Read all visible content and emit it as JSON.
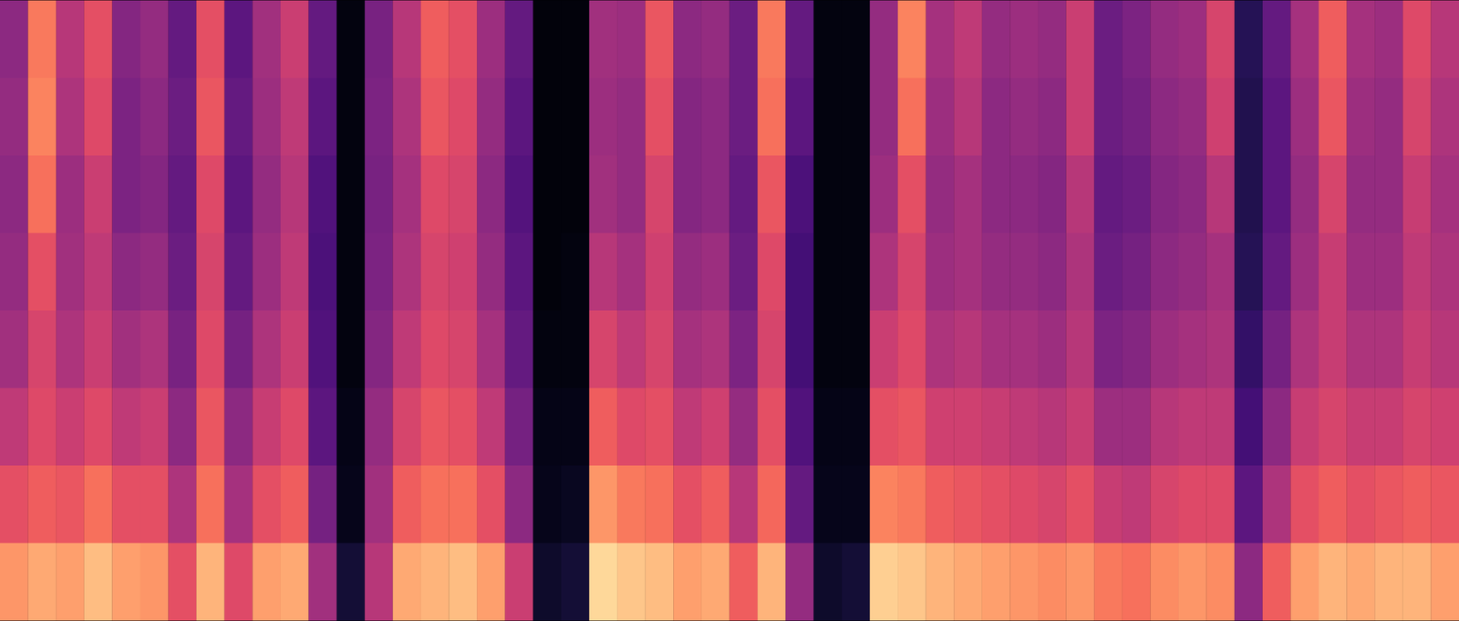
{
  "chart_data": {
    "type": "heatmap",
    "color": "magma",
    "tick_labels": false,
    "zlim": [
      0,
      1
    ],
    "cells": [
      [
        0.4,
        0.42,
        0.4,
        0.42,
        0.45,
        0.52,
        0.62,
        0.78
      ],
      [
        0.72,
        0.74,
        0.7,
        0.62,
        0.58,
        0.6,
        0.66,
        0.82
      ],
      [
        0.5,
        0.48,
        0.44,
        0.45,
        0.48,
        0.55,
        0.64,
        0.8
      ],
      [
        0.62,
        0.6,
        0.55,
        0.52,
        0.55,
        0.6,
        0.7,
        0.86
      ],
      [
        0.38,
        0.36,
        0.36,
        0.4,
        0.45,
        0.52,
        0.62,
        0.8
      ],
      [
        0.42,
        0.4,
        0.38,
        0.42,
        0.48,
        0.55,
        0.62,
        0.78
      ],
      [
        0.3,
        0.32,
        0.3,
        0.32,
        0.35,
        0.4,
        0.48,
        0.62
      ],
      [
        0.62,
        0.64,
        0.6,
        0.58,
        0.6,
        0.64,
        0.7,
        0.84
      ],
      [
        0.28,
        0.3,
        0.28,
        0.3,
        0.34,
        0.4,
        0.46,
        0.6
      ],
      [
        0.45,
        0.44,
        0.42,
        0.44,
        0.48,
        0.54,
        0.62,
        0.8
      ],
      [
        0.55,
        0.52,
        0.5,
        0.52,
        0.55,
        0.6,
        0.66,
        0.82
      ],
      [
        0.3,
        0.28,
        0.25,
        0.24,
        0.25,
        0.28,
        0.34,
        0.45
      ],
      [
        0.03,
        0.03,
        0.03,
        0.03,
        0.03,
        0.04,
        0.05,
        0.1
      ],
      [
        0.35,
        0.36,
        0.35,
        0.36,
        0.38,
        0.42,
        0.45,
        0.5
      ],
      [
        0.5,
        0.48,
        0.46,
        0.48,
        0.52,
        0.58,
        0.66,
        0.82
      ],
      [
        0.66,
        0.64,
        0.6,
        0.58,
        0.6,
        0.64,
        0.7,
        0.84
      ],
      [
        0.62,
        0.6,
        0.58,
        0.56,
        0.58,
        0.62,
        0.7,
        0.86
      ],
      [
        0.44,
        0.42,
        0.4,
        0.42,
        0.46,
        0.52,
        0.62,
        0.8
      ],
      [
        0.3,
        0.28,
        0.26,
        0.28,
        0.3,
        0.34,
        0.4,
        0.55
      ],
      [
        0.02,
        0.02,
        0.02,
        0.02,
        0.03,
        0.04,
        0.05,
        0.08
      ],
      [
        0.02,
        0.02,
        0.02,
        0.03,
        0.03,
        0.04,
        0.06,
        0.1
      ],
      [
        0.45,
        0.44,
        0.45,
        0.5,
        0.58,
        0.66,
        0.78,
        0.92
      ],
      [
        0.44,
        0.42,
        0.42,
        0.46,
        0.52,
        0.6,
        0.72,
        0.88
      ],
      [
        0.64,
        0.62,
        0.58,
        0.56,
        0.58,
        0.62,
        0.7,
        0.86
      ],
      [
        0.4,
        0.38,
        0.38,
        0.42,
        0.46,
        0.52,
        0.62,
        0.8
      ],
      [
        0.42,
        0.4,
        0.4,
        0.44,
        0.48,
        0.56,
        0.66,
        0.82
      ],
      [
        0.32,
        0.32,
        0.3,
        0.32,
        0.36,
        0.42,
        0.5,
        0.66
      ],
      [
        0.72,
        0.7,
        0.64,
        0.6,
        0.58,
        0.62,
        0.68,
        0.84
      ],
      [
        0.3,
        0.28,
        0.24,
        0.22,
        0.22,
        0.25,
        0.3,
        0.42
      ],
      [
        0.03,
        0.03,
        0.03,
        0.03,
        0.03,
        0.04,
        0.05,
        0.08
      ],
      [
        0.03,
        0.03,
        0.03,
        0.03,
        0.03,
        0.04,
        0.05,
        0.1
      ],
      [
        0.42,
        0.42,
        0.44,
        0.48,
        0.55,
        0.62,
        0.74,
        0.9
      ],
      [
        0.74,
        0.7,
        0.62,
        0.58,
        0.6,
        0.64,
        0.72,
        0.88
      ],
      [
        0.46,
        0.44,
        0.42,
        0.44,
        0.48,
        0.56,
        0.66,
        0.84
      ],
      [
        0.52,
        0.5,
        0.46,
        0.46,
        0.5,
        0.56,
        0.64,
        0.82
      ],
      [
        0.42,
        0.4,
        0.4,
        0.42,
        0.46,
        0.54,
        0.62,
        0.8
      ],
      [
        0.44,
        0.42,
        0.4,
        0.42,
        0.46,
        0.52,
        0.6,
        0.78
      ],
      [
        0.42,
        0.4,
        0.38,
        0.4,
        0.44,
        0.5,
        0.58,
        0.76
      ],
      [
        0.55,
        0.55,
        0.5,
        0.48,
        0.5,
        0.54,
        0.62,
        0.78
      ],
      [
        0.32,
        0.32,
        0.3,
        0.32,
        0.36,
        0.44,
        0.54,
        0.72
      ],
      [
        0.36,
        0.34,
        0.32,
        0.34,
        0.38,
        0.44,
        0.52,
        0.7
      ],
      [
        0.42,
        0.4,
        0.38,
        0.4,
        0.44,
        0.5,
        0.58,
        0.76
      ],
      [
        0.44,
        0.42,
        0.4,
        0.42,
        0.46,
        0.52,
        0.6,
        0.78
      ],
      [
        0.58,
        0.56,
        0.5,
        0.46,
        0.48,
        0.52,
        0.6,
        0.76
      ],
      [
        0.15,
        0.14,
        0.14,
        0.15,
        0.18,
        0.22,
        0.28,
        0.4
      ],
      [
        0.3,
        0.28,
        0.28,
        0.3,
        0.34,
        0.4,
        0.48,
        0.66
      ],
      [
        0.46,
        0.44,
        0.42,
        0.44,
        0.48,
        0.54,
        0.62,
        0.8
      ],
      [
        0.66,
        0.64,
        0.58,
        0.54,
        0.54,
        0.58,
        0.66,
        0.84
      ],
      [
        0.46,
        0.44,
        0.42,
        0.44,
        0.48,
        0.54,
        0.62,
        0.82
      ],
      [
        0.44,
        0.42,
        0.42,
        0.44,
        0.48,
        0.54,
        0.64,
        0.84
      ],
      [
        0.6,
        0.58,
        0.54,
        0.52,
        0.54,
        0.58,
        0.66,
        0.84
      ],
      [
        0.5,
        0.48,
        0.46,
        0.48,
        0.5,
        0.56,
        0.64,
        0.8
      ]
    ]
  }
}
